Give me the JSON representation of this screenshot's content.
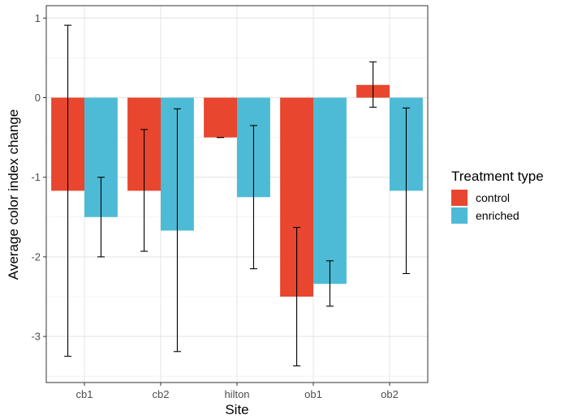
{
  "chart_data": {
    "type": "bar",
    "categories": [
      "cb1",
      "cb2",
      "hilton",
      "ob1",
      "ob2"
    ],
    "xlabel": "Site",
    "ylabel": "Average color index change",
    "ylim": [
      -3.5,
      1.1
    ],
    "yticks": [
      1,
      0,
      -1,
      -2,
      -3
    ],
    "grid": true,
    "legend": {
      "title": "Treatment type",
      "position": "right"
    },
    "series": [
      {
        "name": "control",
        "color": "#E8462F",
        "values": [
          -1.17,
          -1.17,
          -0.5,
          -2.5,
          0.16
        ],
        "error_low": [
          -3.25,
          -1.93,
          -0.5,
          -3.37,
          -0.12
        ],
        "error_high": [
          0.91,
          -0.4,
          -0.5,
          -1.63,
          0.45
        ]
      },
      {
        "name": "enriched",
        "color": "#4DBBD5",
        "values": [
          -1.5,
          -1.67,
          -1.25,
          -2.34,
          -1.17
        ],
        "error_low": [
          -2.0,
          -3.19,
          -2.15,
          -2.62,
          -2.21
        ],
        "error_high": [
          -1.0,
          -0.14,
          -0.35,
          -2.05,
          -0.13
        ]
      }
    ]
  }
}
